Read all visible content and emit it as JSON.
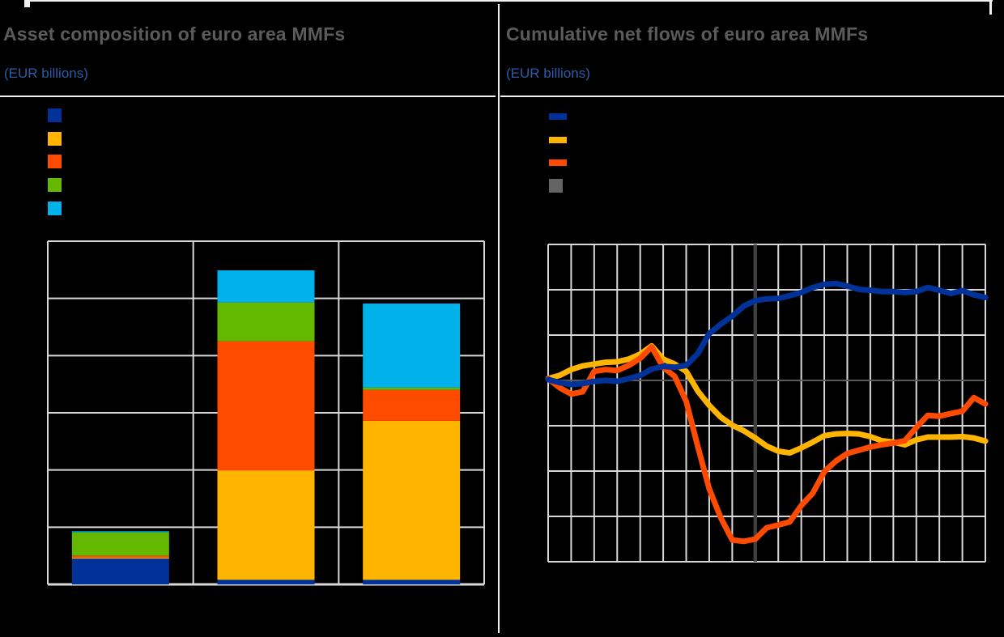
{
  "page": {
    "background": "#000000",
    "palette": {
      "blue": "#003299",
      "amber": "#FFB400",
      "orange": "#FF4B00",
      "green": "#65B800",
      "cyan": "#00B1EA",
      "gray": "#646464",
      "grid": "#d8d8d8",
      "zero_line": "#5a5a5a",
      "marker_line": "#3f3f3f",
      "title_gray": "#5b5b5b",
      "subtitle_blue": "#2a5caa",
      "separator": "#f2f2f2"
    }
  },
  "left_panel": {
    "title": "Asset composition of euro area MMFs",
    "subtitle": "(EUR billions)",
    "legend": [
      {
        "swatch": "square",
        "color": "#003299",
        "label": ""
      },
      {
        "swatch": "square",
        "color": "#FFB400",
        "label": ""
      },
      {
        "swatch": "square",
        "color": "#FF4B00",
        "label": ""
      },
      {
        "swatch": "square",
        "color": "#65B800",
        "label": ""
      },
      {
        "swatch": "square",
        "color": "#00B1EA",
        "label": ""
      }
    ]
  },
  "right_panel": {
    "title": "Cumulative net flows of euro area MMFs",
    "subtitle": "(EUR billions)",
    "legend": [
      {
        "swatch": "line",
        "color": "#003299",
        "label": ""
      },
      {
        "swatch": "line",
        "color": "#FFB400",
        "label": ""
      },
      {
        "swatch": "line",
        "color": "#FF4B00",
        "label": ""
      },
      {
        "swatch": "square",
        "color": "#646464",
        "label": ""
      }
    ]
  },
  "chart_data": [
    {
      "type": "bar",
      "stacked": true,
      "title": "Asset composition of euro area MMFs",
      "subtitle": "(EUR billions)",
      "note": "No axis tick labels or legend labels are visible (black on black); values measured in gridline units",
      "y_unit": "horizontal gridline intervals",
      "ylim": [
        0,
        6
      ],
      "xlabel": "",
      "ylabel": "",
      "grid": {
        "h_intervals": 6,
        "v_intervals": 3
      },
      "categories": [
        "bar-1",
        "bar-2",
        "bar-3"
      ],
      "category_labels_visible": false,
      "series": [
        {
          "name": "blue",
          "color": "#003299",
          "values": [
            0.45,
            0.08,
            0.08
          ]
        },
        {
          "name": "amber",
          "color": "#FFB400",
          "values": [
            0.02,
            1.91,
            2.78
          ]
        },
        {
          "name": "orange",
          "color": "#FF4B00",
          "values": [
            0.03,
            2.26,
            0.54
          ]
        },
        {
          "name": "green",
          "color": "#65B800",
          "values": [
            0.41,
            0.68,
            0.04
          ]
        },
        {
          "name": "cyan",
          "color": "#00B1EA",
          "values": [
            0.02,
            0.56,
            1.47
          ]
        }
      ],
      "totals": [
        0.93,
        5.49,
        4.91
      ]
    },
    {
      "type": "line",
      "title": "Cumulative net flows of euro area MMFs",
      "subtitle": "(EUR billions)",
      "note": "No axis tick labels or legend labels are visible (black on black); y values are gridline intervals relative to the darker zero line, x in gridline columns with points every half column",
      "y_unit": "horizontal gridline intervals (zero at darker line)",
      "x_unit": "vertical gridline columns",
      "ylim": [
        -4,
        3
      ],
      "xlim": [
        0,
        19
      ],
      "x_step": 0.5,
      "zero_row_from_top": 3,
      "grid": {
        "h_intervals": 7,
        "v_intervals": 19
      },
      "vertical_marker": {
        "x_column": 9,
        "color": "#3f3f3f"
      },
      "series": [
        {
          "name": "blue",
          "color": "#003299",
          "values": [
            0.02,
            -0.05,
            -0.09,
            -0.07,
            -0.02,
            0,
            -0.02,
            0.04,
            0.11,
            0.25,
            0.31,
            0.29,
            0.33,
            0.59,
            1.03,
            1.24,
            1.42,
            1.64,
            1.76,
            1.8,
            1.81,
            1.87,
            1.94,
            2.05,
            2.12,
            2.14,
            2.08,
            2.01,
            1.99,
            1.96,
            1.96,
            1.94,
            1.96,
            2.05,
            1.99,
            1.92,
            1.98,
            1.89,
            1.83
          ]
        },
        {
          "name": "amber",
          "color": "#FFB400",
          "values": [
            0.04,
            0.11,
            0.24,
            0.32,
            0.36,
            0.4,
            0.41,
            0.47,
            0.58,
            0.76,
            0.47,
            0.36,
            0.2,
            -0.23,
            -0.55,
            -0.81,
            -0.99,
            -1.11,
            -1.27,
            -1.45,
            -1.56,
            -1.6,
            -1.49,
            -1.36,
            -1.22,
            -1.18,
            -1.17,
            -1.18,
            -1.24,
            -1.33,
            -1.36,
            -1.42,
            -1.31,
            -1.25,
            -1.25,
            -1.25,
            -1.24,
            -1.27,
            -1.34
          ]
        },
        {
          "name": "orange",
          "color": "#FF4B00",
          "values": [
            0.04,
            -0.16,
            -0.3,
            -0.25,
            0.2,
            0.24,
            0.22,
            0.33,
            0.49,
            0.74,
            0.29,
            0.09,
            -0.46,
            -1.45,
            -2.39,
            -3.03,
            -3.52,
            -3.55,
            -3.5,
            -3.25,
            -3.19,
            -3.12,
            -2.76,
            -2.49,
            -2.01,
            -1.78,
            -1.61,
            -1.54,
            -1.47,
            -1.42,
            -1.38,
            -1.33,
            -1.04,
            -0.77,
            -0.79,
            -0.73,
            -0.68,
            -0.38,
            -0.52
          ]
        }
      ]
    }
  ]
}
